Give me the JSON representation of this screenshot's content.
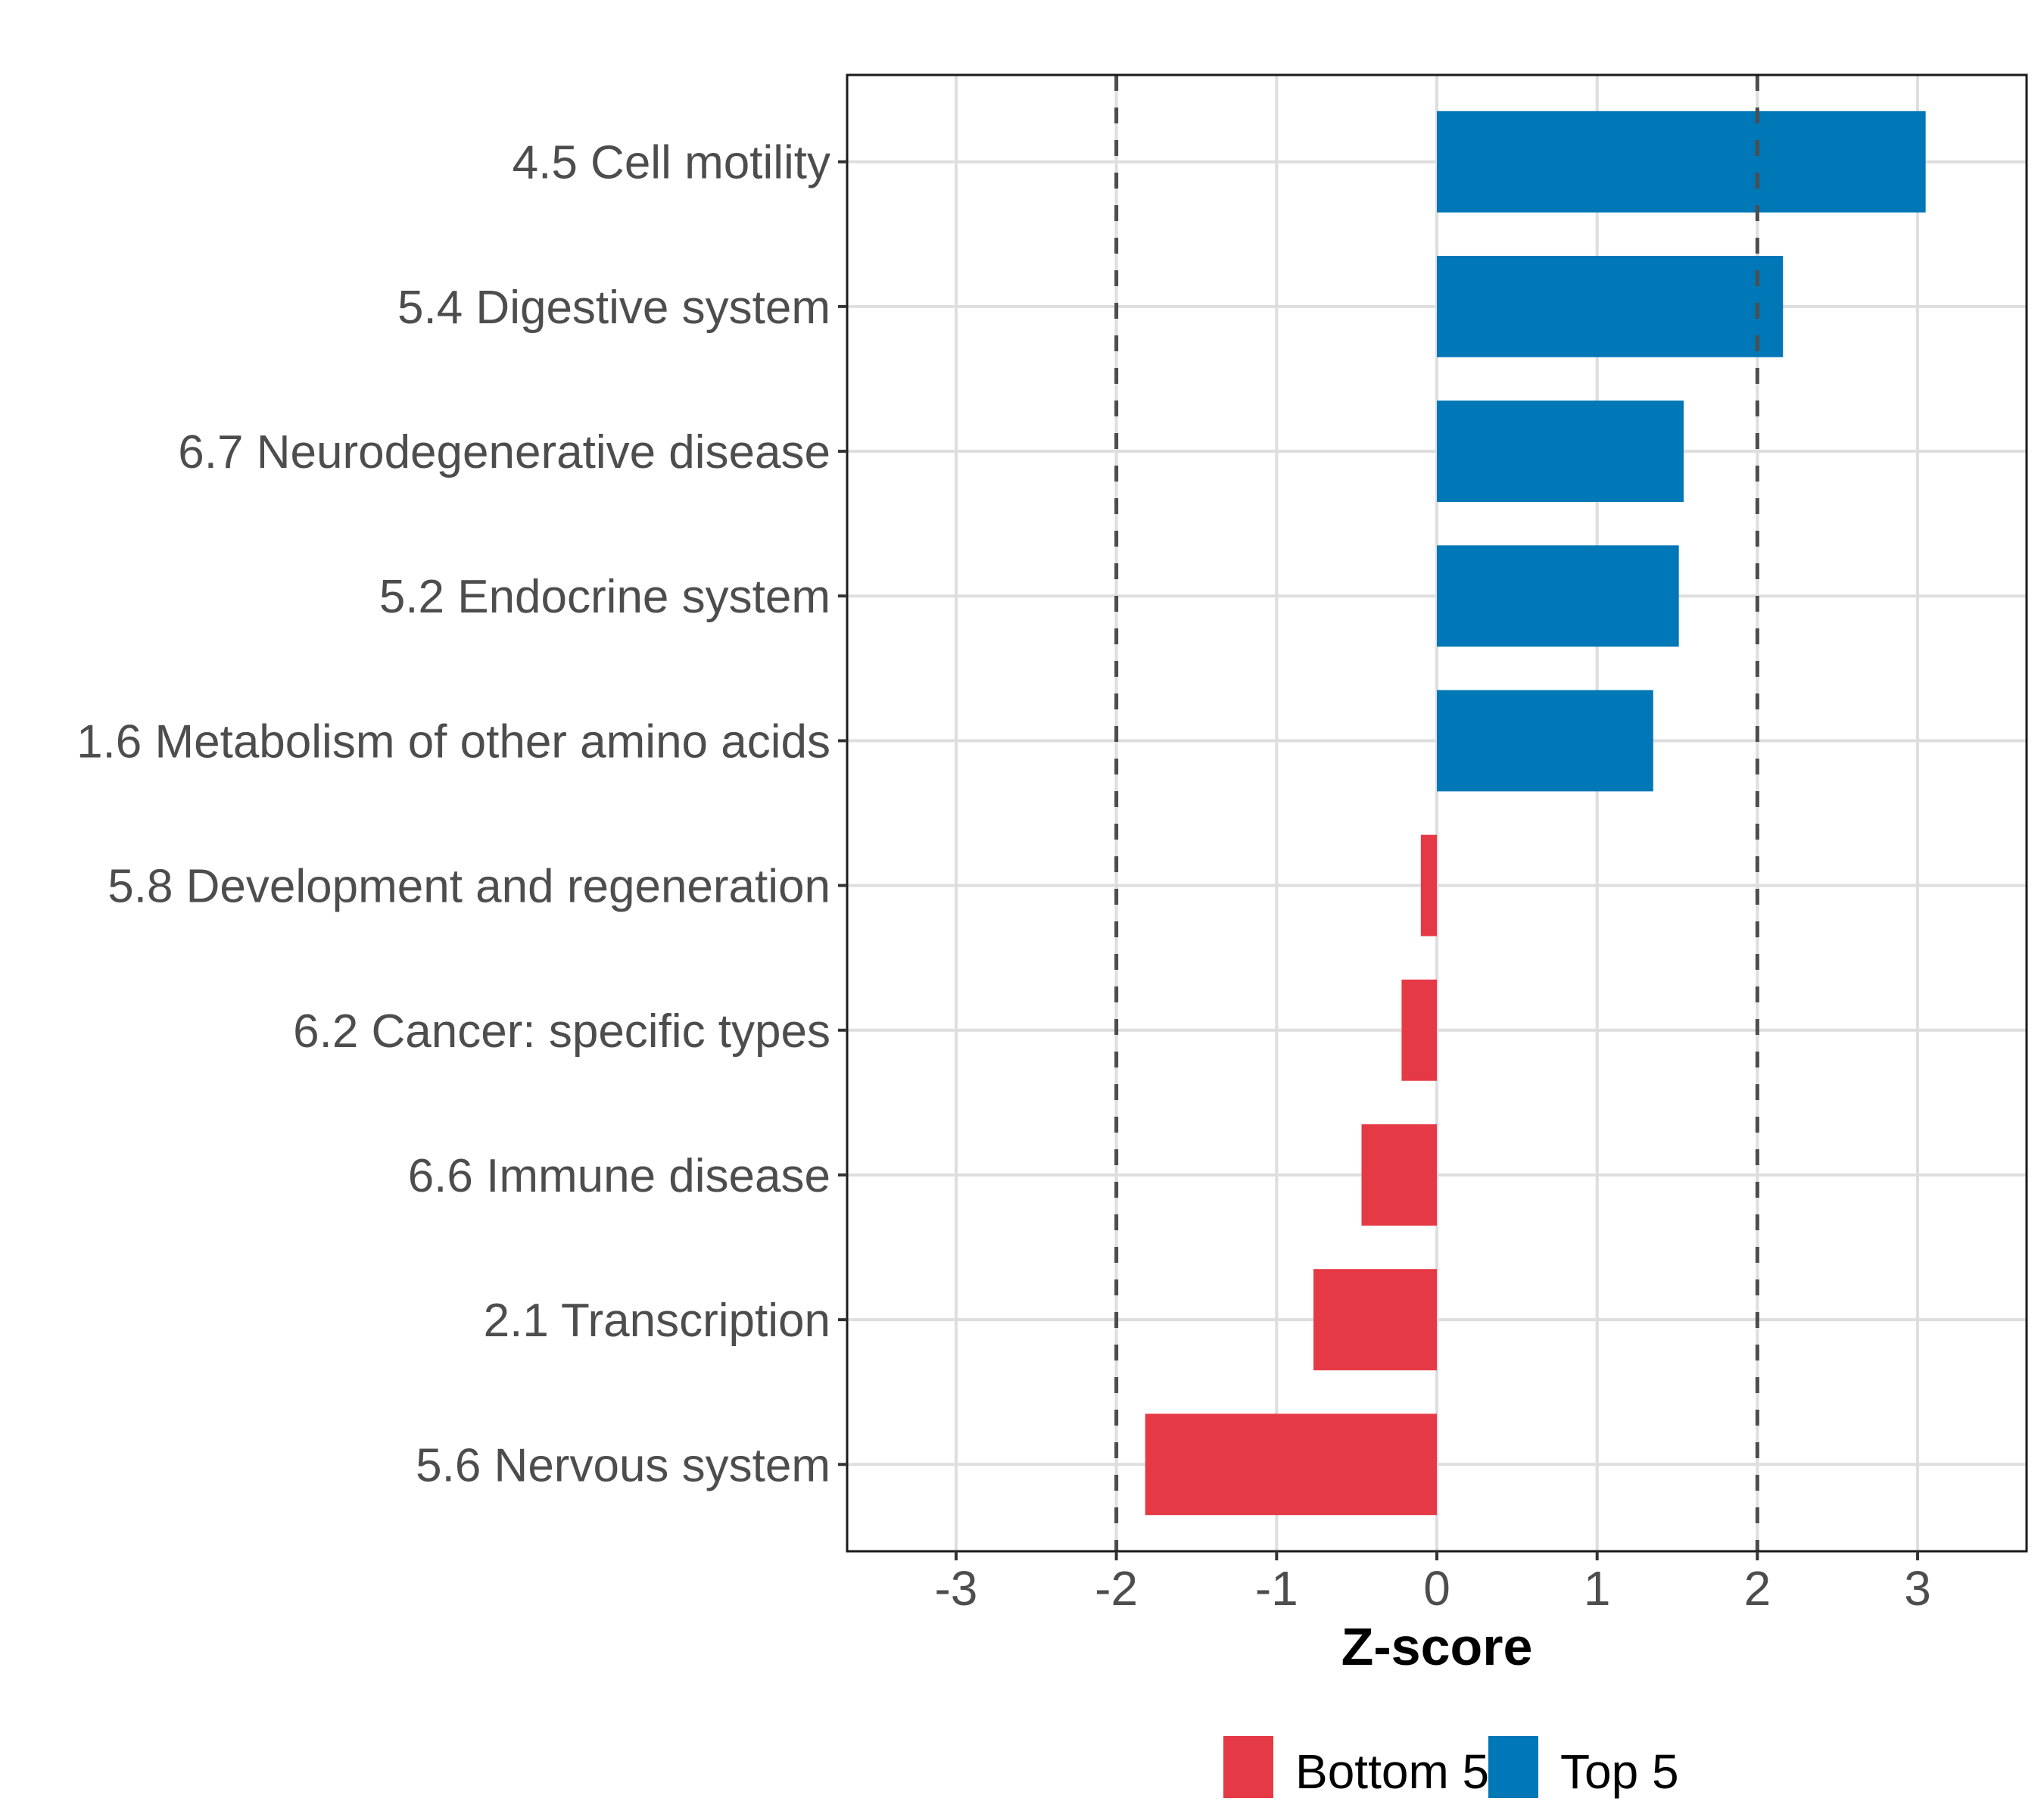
{
  "chart_data": {
    "type": "bar",
    "orientation": "horizontal",
    "title": "",
    "xlabel": "Z-score",
    "ylabel": "",
    "xlim": [
      -3.68,
      3.68
    ],
    "xticks": [
      -3,
      -2,
      -1,
      0,
      1,
      2,
      3
    ],
    "xtick_labels": [
      "-3",
      "-2",
      "-1",
      "0",
      "1",
      "2",
      "3"
    ],
    "grid": true,
    "reference_lines": [
      -2,
      2
    ],
    "categories": [
      "4.5 Cell motility",
      "5.4 Digestive system",
      "6.7 Neurodegenerative disease",
      "5.2 Endocrine system",
      "1.6 Metabolism of other amino acids",
      "5.8 Development and regeneration",
      "6.2 Cancer: specific types",
      "6.6 Immune disease",
      "2.1 Transcription",
      "5.6 Nervous system"
    ],
    "values": [
      3.05,
      2.16,
      1.54,
      1.51,
      1.35,
      -0.1,
      -0.22,
      -0.47,
      -0.77,
      -1.82
    ],
    "groups": [
      "Top 5",
      "Top 5",
      "Top 5",
      "Top 5",
      "Top 5",
      "Bottom 5",
      "Bottom 5",
      "Bottom 5",
      "Bottom 5",
      "Bottom 5"
    ],
    "legend": {
      "placement": "bottom",
      "entries": [
        {
          "label": "Bottom 5",
          "color": "#E63946"
        },
        {
          "label": "Top 5",
          "color": "#0077B6"
        }
      ]
    },
    "colors": {
      "Top 5": "#0077B6",
      "Bottom 5": "#E63946"
    }
  }
}
